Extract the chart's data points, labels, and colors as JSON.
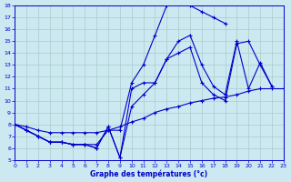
{
  "xlabel": "Graphe des températures (°c)",
  "ylim": [
    5,
    18
  ],
  "xlim": [
    0,
    23
  ],
  "yticks": [
    5,
    6,
    7,
    8,
    9,
    10,
    11,
    12,
    13,
    14,
    15,
    16,
    17,
    18
  ],
  "xticks": [
    0,
    1,
    2,
    3,
    4,
    5,
    6,
    7,
    8,
    9,
    10,
    11,
    12,
    13,
    14,
    15,
    16,
    17,
    18,
    19,
    20,
    21,
    22,
    23
  ],
  "background_color": "#cce8f0",
  "grid_color": "#aacccc",
  "line_color": "#0000cc",
  "series": [
    {
      "x": [
        0,
        1,
        2,
        3,
        4,
        5,
        6,
        7,
        8,
        9,
        10,
        11,
        12,
        13,
        14,
        15,
        16,
        17,
        18,
        19,
        20,
        21,
        22,
        23
      ],
      "y": [
        8.0,
        7.5,
        7.0,
        6.5,
        6.5,
        6.3,
        6.3,
        6.3,
        7.5,
        7.5,
        11.5,
        13.0,
        15.5,
        18.0,
        18.3,
        18.0,
        17.5,
        17.0,
        16.5,
        null,
        null,
        null,
        null,
        null
      ]
    },
    {
      "x": [
        0,
        1,
        2,
        3,
        4,
        5,
        6,
        7,
        8,
        9,
        10,
        11,
        12,
        13,
        14,
        15,
        16,
        17,
        18,
        19,
        20,
        21,
        22,
        23
      ],
      "y": [
        null,
        null,
        null,
        null,
        null,
        null,
        null,
        null,
        null,
        null,
        null,
        null,
        null,
        null,
        15.0,
        15.5,
        13.0,
        null,
        null,
        null,
        null,
        null,
        null,
        null
      ]
    },
    {
      "x": [
        0,
        1,
        2,
        3,
        4,
        5,
        6,
        7,
        8,
        9,
        10,
        11,
        12,
        13,
        14,
        15,
        16,
        17,
        18,
        19,
        20,
        21,
        22,
        23
      ],
      "y": [
        8.0,
        7.5,
        7.0,
        6.5,
        6.5,
        6.3,
        6.3,
        6.0,
        7.5,
        5.2,
        11.0,
        11.5,
        11.0,
        13.0,
        null,
        null,
        null,
        null,
        null,
        15.0,
        13.0,
        13.2,
        11.2,
        null
      ]
    },
    {
      "x": [
        0,
        1,
        2,
        3,
        4,
        5,
        6,
        7,
        8,
        9,
        10,
        11,
        12,
        13,
        14,
        15,
        16,
        17,
        18,
        19,
        20,
        21,
        22,
        23
      ],
      "y": [
        8.0,
        null,
        null,
        null,
        null,
        null,
        null,
        null,
        null,
        null,
        null,
        null,
        null,
        null,
        null,
        null,
        null,
        null,
        null,
        null,
        null,
        null,
        null,
        11.0
      ]
    }
  ],
  "series_clean": [
    {
      "x": [
        0,
        1,
        2,
        3,
        4,
        5,
        6,
        7,
        8,
        9,
        10,
        11,
        12,
        13,
        14,
        15,
        16,
        17,
        18
      ],
      "y": [
        8.0,
        7.5,
        7.0,
        6.5,
        6.5,
        6.3,
        6.3,
        6.3,
        7.5,
        7.5,
        11.5,
        13.0,
        15.5,
        18.0,
        18.3,
        18.0,
        17.5,
        17.0,
        16.5
      ]
    },
    {
      "x": [
        0,
        1,
        2,
        3,
        4,
        5,
        6,
        7,
        8,
        9,
        10,
        11,
        12,
        13,
        14,
        15,
        16,
        17,
        18,
        19,
        20,
        21,
        22,
        23
      ],
      "y": [
        8.0,
        7.5,
        7.0,
        6.5,
        6.5,
        6.3,
        6.3,
        6.0,
        7.8,
        5.2,
        11.0,
        11.5,
        11.5,
        13.5,
        15.0,
        15.5,
        13.0,
        11.2,
        10.5,
        15.0,
        11.0,
        13.2,
        11.2,
        null
      ]
    },
    {
      "x": [
        0,
        1,
        2,
        3,
        4,
        5,
        6,
        7,
        8,
        9,
        10,
        11,
        12,
        13,
        14,
        15,
        16,
        17,
        18,
        19,
        20,
        21,
        22,
        23
      ],
      "y": [
        8.0,
        7.5,
        7.0,
        6.5,
        6.5,
        6.3,
        6.3,
        6.0,
        7.8,
        5.2,
        9.5,
        10.5,
        11.5,
        13.5,
        14.0,
        14.5,
        11.5,
        10.5,
        10.0,
        14.8,
        15.0,
        13.0,
        11.2,
        null
      ]
    },
    {
      "x": [
        0,
        1,
        2,
        3,
        4,
        5,
        6,
        7,
        8,
        9,
        10,
        11,
        12,
        13,
        14,
        15,
        16,
        17,
        18,
        19,
        20,
        21,
        22,
        23
      ],
      "y": [
        8.0,
        7.8,
        7.5,
        7.3,
        7.3,
        7.3,
        7.3,
        7.3,
        7.5,
        7.8,
        8.2,
        8.5,
        9.0,
        9.3,
        9.5,
        9.8,
        10.0,
        10.2,
        10.3,
        10.5,
        10.8,
        11.0,
        11.0,
        11.0
      ]
    }
  ]
}
